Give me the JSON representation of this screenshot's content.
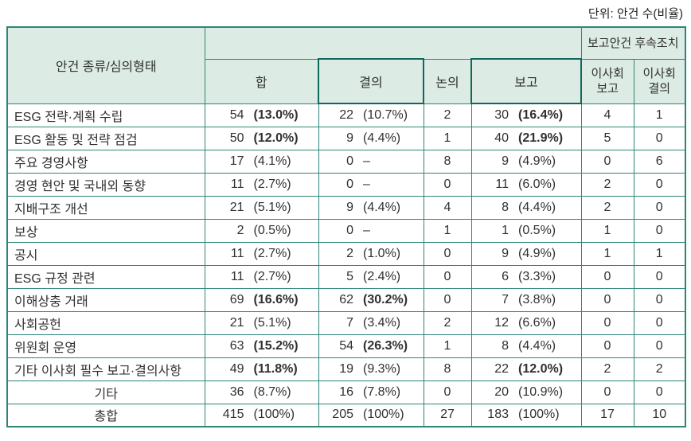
{
  "unit_label": "단위: 안건 수(비율)",
  "headers": {
    "agenda_type": "안건 종류/심의형태",
    "total": "합",
    "resolution": "결의",
    "discussion": "논의",
    "report": "보고",
    "followup_group": "보고안건 후속조치",
    "board_report": "이사회 보고",
    "board_resolution": "이사회 결의"
  },
  "rows": [
    {
      "label": "ESG 전략·계획 수립",
      "center": false,
      "hap": {
        "n": "54",
        "p": "(13.0%)",
        "b": true
      },
      "res": {
        "n": "22",
        "p": "(10.7%)",
        "b": false
      },
      "disc": "2",
      "rep": {
        "n": "30",
        "p": "(16.4%)",
        "b": true
      },
      "fu1": "4",
      "fu2": "1"
    },
    {
      "label": "ESG 활동 및 전략 점검",
      "center": false,
      "hap": {
        "n": "50",
        "p": "(12.0%)",
        "b": true
      },
      "res": {
        "n": "9",
        "p": "(4.4%)",
        "b": false
      },
      "disc": "1",
      "rep": {
        "n": "40",
        "p": "(21.9%)",
        "b": true
      },
      "fu1": "5",
      "fu2": "0"
    },
    {
      "label": "주요 경영사항",
      "center": false,
      "hap": {
        "n": "17",
        "p": "(4.1%)",
        "b": false
      },
      "res": {
        "n": "0",
        "p": "–",
        "b": false
      },
      "disc": "8",
      "rep": {
        "n": "9",
        "p": "(4.9%)",
        "b": false
      },
      "fu1": "0",
      "fu2": "6"
    },
    {
      "label": "경영 현안 및 국내외 동향",
      "center": false,
      "hap": {
        "n": "11",
        "p": "(2.7%)",
        "b": false
      },
      "res": {
        "n": "0",
        "p": "–",
        "b": false
      },
      "disc": "0",
      "rep": {
        "n": "11",
        "p": "(6.0%)",
        "b": false
      },
      "fu1": "2",
      "fu2": "0"
    },
    {
      "label": "지배구조 개선",
      "center": false,
      "hap": {
        "n": "21",
        "p": "(5.1%)",
        "b": false
      },
      "res": {
        "n": "9",
        "p": "(4.4%)",
        "b": false
      },
      "disc": "4",
      "rep": {
        "n": "8",
        "p": "(4.4%)",
        "b": false
      },
      "fu1": "2",
      "fu2": "0"
    },
    {
      "label": "보상",
      "center": false,
      "hap": {
        "n": "2",
        "p": "(0.5%)",
        "b": false
      },
      "res": {
        "n": "0",
        "p": "–",
        "b": false
      },
      "disc": "1",
      "rep": {
        "n": "1",
        "p": "(0.5%)",
        "b": false
      },
      "fu1": "1",
      "fu2": "0"
    },
    {
      "label": "공시",
      "center": false,
      "hap": {
        "n": "11",
        "p": "(2.7%)",
        "b": false
      },
      "res": {
        "n": "2",
        "p": "(1.0%)",
        "b": false
      },
      "disc": "0",
      "rep": {
        "n": "9",
        "p": "(4.9%)",
        "b": false
      },
      "fu1": "1",
      "fu2": "1"
    },
    {
      "label": "ESG 규정 관련",
      "center": false,
      "hap": {
        "n": "11",
        "p": "(2.7%)",
        "b": false
      },
      "res": {
        "n": "5",
        "p": "(2.4%)",
        "b": false
      },
      "disc": "0",
      "rep": {
        "n": "6",
        "p": "(3.3%)",
        "b": false
      },
      "fu1": "0",
      "fu2": "0"
    },
    {
      "label": "이해상충 거래",
      "center": false,
      "hap": {
        "n": "69",
        "p": "(16.6%)",
        "b": true
      },
      "res": {
        "n": "62",
        "p": "(30.2%)",
        "b": true
      },
      "disc": "0",
      "rep": {
        "n": "7",
        "p": "(3.8%)",
        "b": false
      },
      "fu1": "0",
      "fu2": "0"
    },
    {
      "label": "사회공헌",
      "center": false,
      "hap": {
        "n": "21",
        "p": "(5.1%)",
        "b": false
      },
      "res": {
        "n": "7",
        "p": "(3.4%)",
        "b": false
      },
      "disc": "2",
      "rep": {
        "n": "12",
        "p": "(6.6%)",
        "b": false
      },
      "fu1": "0",
      "fu2": "0"
    },
    {
      "label": "위원회 운영",
      "center": false,
      "hap": {
        "n": "63",
        "p": "(15.2%)",
        "b": true
      },
      "res": {
        "n": "54",
        "p": "(26.3%)",
        "b": true
      },
      "disc": "1",
      "rep": {
        "n": "8",
        "p": "(4.4%)",
        "b": false
      },
      "fu1": "0",
      "fu2": "0"
    },
    {
      "label": "기타 이사회 필수 보고·결의사항",
      "center": false,
      "hap": {
        "n": "49",
        "p": "(11.8%)",
        "b": true
      },
      "res": {
        "n": "19",
        "p": "(9.3%)",
        "b": false
      },
      "disc": "8",
      "rep": {
        "n": "22",
        "p": "(12.0%)",
        "b": true
      },
      "fu1": "2",
      "fu2": "2"
    },
    {
      "label": "기타",
      "center": true,
      "hap": {
        "n": "36",
        "p": "(8.7%)",
        "b": false
      },
      "res": {
        "n": "16",
        "p": "(7.8%)",
        "b": false
      },
      "disc": "0",
      "rep": {
        "n": "20",
        "p": "(10.9%)",
        "b": false
      },
      "fu1": "0",
      "fu2": "0"
    },
    {
      "label": "총합",
      "center": true,
      "total": true,
      "hap": {
        "n": "415",
        "p": "(100%)",
        "b": false
      },
      "res": {
        "n": "205",
        "p": "(100%)",
        "b": false
      },
      "disc": "27",
      "rep": {
        "n": "183",
        "p": "(100%)",
        "b": false
      },
      "fu1": "17",
      "fu2": "10"
    }
  ],
  "colors": {
    "border": "#2e8577",
    "border_strong": "#10685a",
    "header_bg": "#dcebe4",
    "text": "#303030"
  }
}
